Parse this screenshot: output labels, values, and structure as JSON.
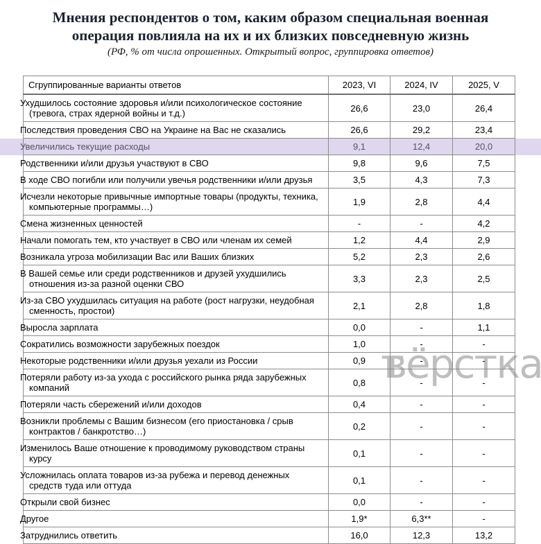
{
  "title": {
    "line1": "Мнения респондентов о том, каким образом специальная военная",
    "line2": "операция повлияла на их и их близких повседневную жизнь"
  },
  "subtitle": "(РФ, % от числа опрошенных. Открытый вопрос, группировка ответов)",
  "watermark": {
    "prefix": "т",
    "text": "вёрстка"
  },
  "colors": {
    "highlight_bg": "#ded7ee",
    "highlight_text": "#57525f",
    "border": "#8c8c8c",
    "title_text": "#1b2230"
  },
  "chart_data": {
    "type": "table",
    "title": "Мнения респондентов о том, каким образом специальная военная операция повлияла на их и их близких повседневную жизнь",
    "subtitle": "(РФ, % от числа опрошенных. Открытый вопрос, группировка ответов)",
    "columns": [
      "Сгруппированные варианты ответов",
      "2023, VI",
      "2024, IV",
      "2025, V"
    ],
    "rows": [
      {
        "label": "Ухудшилось состояние здоровья и/или психологическое состояние (тревога, страх ядерной войны и т.д.)",
        "values": [
          "26,6",
          "23,0",
          "26,4"
        ],
        "highlight": false
      },
      {
        "label": "Последствия проведения СВО на Украине на Вас не сказались",
        "values": [
          "26,6",
          "29,2",
          "23,4"
        ],
        "highlight": false
      },
      {
        "label": "Увеличились текущие расходы",
        "values": [
          "9,1",
          "12,4",
          "20,0"
        ],
        "highlight": true
      },
      {
        "label": "Родственники и/или друзья участвуют в СВО",
        "values": [
          "9,8",
          "9,6",
          "7,5"
        ],
        "highlight": false
      },
      {
        "label": "В ходе СВО погибли или получили увечья родственники и/или друзья",
        "values": [
          "3,5",
          "4,3",
          "7,3"
        ],
        "highlight": false
      },
      {
        "label": "Исчезли некоторые привычные импортные товары (продукты, техника, компьютерные программы…)",
        "values": [
          "1,9",
          "2,8",
          "4,4"
        ],
        "highlight": false
      },
      {
        "label": "Смена жизненных ценностей",
        "values": [
          "-",
          "-",
          "4,2"
        ],
        "highlight": false
      },
      {
        "label": "Начали помогать тем, кто участвует в СВО или членам их семей",
        "values": [
          "1,2",
          "4,4",
          "2,9"
        ],
        "highlight": false
      },
      {
        "label": "Возникала угроза мобилизации Вас или Ваших близких",
        "values": [
          "5,2",
          "2,3",
          "2,6"
        ],
        "highlight": false
      },
      {
        "label": "В Вашей семье или среди родственников и друзей ухудшились отношения из-за разной оценки СВО",
        "values": [
          "3,3",
          "2,3",
          "2,5"
        ],
        "highlight": false
      },
      {
        "label": "Из-за СВО ухудшилась ситуация на работе (рост нагрузки, неудобная сменность, простои)",
        "values": [
          "2,1",
          "2,8",
          "1,8"
        ],
        "highlight": false
      },
      {
        "label": "Выросла зарплата",
        "values": [
          "0,0",
          "-",
          "1,1"
        ],
        "highlight": false
      },
      {
        "label": "Сократились возможности зарубежных поездок",
        "values": [
          "1,0",
          "-",
          "-"
        ],
        "highlight": false
      },
      {
        "label": "Некоторые родственники и/или друзья уехали из России",
        "values": [
          "0,9",
          "-",
          "-"
        ],
        "highlight": false
      },
      {
        "label": "Потеряли работу из-за ухода с российского рынка ряда зарубежных компаний",
        "values": [
          "0,8",
          "-",
          "-"
        ],
        "highlight": false
      },
      {
        "label": "Потеряли часть сбережений и/или доходов",
        "values": [
          "0,4",
          "-",
          "-"
        ],
        "highlight": false
      },
      {
        "label": "Возникли проблемы с Вашим бизнесом (его приостановка / срыв контрактов / банкротство…)",
        "values": [
          "0,2",
          "-",
          "-"
        ],
        "highlight": false
      },
      {
        "label": "Изменилось Ваше отношение к проводимому руководством страны курсу",
        "values": [
          "0,1",
          "-",
          "-"
        ],
        "highlight": false
      },
      {
        "label": "Усложнилась оплата товаров из-за рубежа и перевод денежных средств туда или оттуда",
        "values": [
          "0,1",
          "-",
          "-"
        ],
        "highlight": false
      },
      {
        "label": "Открыли свой бизнес",
        "values": [
          "0,0",
          "-",
          "-"
        ],
        "highlight": false
      },
      {
        "label": "Другое",
        "values": [
          "1,9*",
          "6,3**",
          "-"
        ],
        "highlight": false
      },
      {
        "label": "Затруднились ответить",
        "values": [
          "16,0",
          "12,3",
          "13,2"
        ],
        "highlight": false
      }
    ]
  }
}
